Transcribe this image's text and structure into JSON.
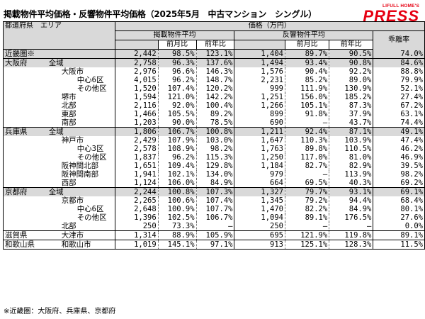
{
  "title": "掲載物件平均価格・反響物件平均価格（2025年5月　中古マンション　シングル）",
  "logo": {
    "top": "LIFULL HOME'S",
    "main": "PRESS",
    "color": "#e60012"
  },
  "header": {
    "area_col": "都道府県　エリア",
    "price_group": "価格（万円）",
    "listed_avg": "掲載物件平均",
    "response_avg": "反響物件平均",
    "mom": "前月比",
    "yoy": "前年比",
    "divergence": "乖離率"
  },
  "rows": [
    {
      "pref": "近畿圏※",
      "area": "",
      "indent": 0,
      "lp": "2,442",
      "lm": "98.5%",
      "ly": "123.1%",
      "rp": "1,404",
      "rm": "89.7%",
      "ry": "90.5%",
      "d": "74.0%",
      "shade": true,
      "sep": true
    },
    {
      "pref": "大阪府",
      "area": "全域",
      "indent": 0,
      "lp": "2,758",
      "lm": "96.3%",
      "ly": "137.6%",
      "rp": "1,494",
      "rm": "93.4%",
      "ry": "90.8%",
      "d": "84.6%",
      "shade": true,
      "sep": false
    },
    {
      "pref": "",
      "area": "大阪市",
      "indent": 1,
      "lp": "2,976",
      "lm": "96.6%",
      "ly": "146.3%",
      "rp": "1,576",
      "rm": "90.4%",
      "ry": "92.2%",
      "d": "88.8%",
      "shade": false,
      "sep": false
    },
    {
      "pref": "",
      "area": "中心6区",
      "indent": 2,
      "lp": "4,015",
      "lm": "96.2%",
      "ly": "148.7%",
      "rp": "2,231",
      "rm": "85.2%",
      "ry": "89.0%",
      "d": "79.9%",
      "shade": false,
      "sep": false
    },
    {
      "pref": "",
      "area": "その他区",
      "indent": 2,
      "lp": "1,520",
      "lm": "107.4%",
      "ly": "120.2%",
      "rp": "999",
      "rm": "111.9%",
      "ry": "130.9%",
      "d": "52.1%",
      "shade": false,
      "sep": false
    },
    {
      "pref": "",
      "area": "堺市",
      "indent": 1,
      "lp": "1,594",
      "lm": "121.0%",
      "ly": "142.2%",
      "rp": "1,251",
      "rm": "156.0%",
      "ry": "185.2%",
      "d": "27.4%",
      "shade": false,
      "sep": false
    },
    {
      "pref": "",
      "area": "北部",
      "indent": 1,
      "lp": "2,116",
      "lm": "92.0%",
      "ly": "100.4%",
      "rp": "1,266",
      "rm": "105.1%",
      "ry": "87.3%",
      "d": "67.2%",
      "shade": false,
      "sep": false
    },
    {
      "pref": "",
      "area": "東部",
      "indent": 1,
      "lp": "1,466",
      "lm": "105.5%",
      "ly": "89.2%",
      "rp": "899",
      "rm": "91.8%",
      "ry": "37.9%",
      "d": "63.1%",
      "shade": false,
      "sep": false
    },
    {
      "pref": "",
      "area": "南部",
      "indent": 1,
      "lp": "1,203",
      "lm": "90.0%",
      "ly": "78.5%",
      "rp": "690",
      "rm": "–",
      "ry": "43.7%",
      "d": "74.4%",
      "shade": false,
      "sep": true
    },
    {
      "pref": "兵庫県",
      "area": "全域",
      "indent": 0,
      "lp": "1,806",
      "lm": "106.7%",
      "ly": "100.8%",
      "rp": "1,211",
      "rm": "92.4%",
      "ry": "87.1%",
      "d": "49.1%",
      "shade": true,
      "sep": false
    },
    {
      "pref": "",
      "area": "神戸市",
      "indent": 1,
      "lp": "2,429",
      "lm": "107.9%",
      "ly": "103.0%",
      "rp": "1,647",
      "rm": "110.3%",
      "ry": "103.9%",
      "d": "47.4%",
      "shade": false,
      "sep": false
    },
    {
      "pref": "",
      "area": "中心3区",
      "indent": 2,
      "lp": "2,578",
      "lm": "108.9%",
      "ly": "98.2%",
      "rp": "1,763",
      "rm": "89.8%",
      "ry": "110.5%",
      "d": "46.2%",
      "shade": false,
      "sep": false
    },
    {
      "pref": "",
      "area": "その他区",
      "indent": 2,
      "lp": "1,837",
      "lm": "96.2%",
      "ly": "115.3%",
      "rp": "1,250",
      "rm": "117.0%",
      "ry": "81.0%",
      "d": "46.9%",
      "shade": false,
      "sep": false
    },
    {
      "pref": "",
      "area": "阪神間北部",
      "indent": 1,
      "lp": "1,651",
      "lm": "109.4%",
      "ly": "129.8%",
      "rp": "1,184",
      "rm": "82.7%",
      "ry": "82.9%",
      "d": "39.5%",
      "shade": false,
      "sep": false
    },
    {
      "pref": "",
      "area": "阪神間南部",
      "indent": 1,
      "lp": "1,941",
      "lm": "102.1%",
      "ly": "134.0%",
      "rp": "979",
      "rm": "–",
      "ry": "113.9%",
      "d": "98.2%",
      "shade": false,
      "sep": false
    },
    {
      "pref": "",
      "area": "西部",
      "indent": 1,
      "lp": "1,124",
      "lm": "106.0%",
      "ly": "84.9%",
      "rp": "664",
      "rm": "69.5%",
      "ry": "40.3%",
      "d": "69.2%",
      "shade": false,
      "sep": true
    },
    {
      "pref": "京都府",
      "area": "全域",
      "indent": 0,
      "lp": "2,244",
      "lm": "100.8%",
      "ly": "107.3%",
      "rp": "1,327",
      "rm": "79.7%",
      "ry": "93.1%",
      "d": "69.1%",
      "shade": true,
      "sep": false
    },
    {
      "pref": "",
      "area": "京都市",
      "indent": 1,
      "lp": "2,265",
      "lm": "100.6%",
      "ly": "107.4%",
      "rp": "1,345",
      "rm": "79.2%",
      "ry": "94.4%",
      "d": "68.4%",
      "shade": false,
      "sep": false
    },
    {
      "pref": "",
      "area": "中心6区",
      "indent": 2,
      "lp": "2,648",
      "lm": "100.9%",
      "ly": "107.7%",
      "rp": "1,470",
      "rm": "82.2%",
      "ry": "84.9%",
      "d": "80.1%",
      "shade": false,
      "sep": false
    },
    {
      "pref": "",
      "area": "その他区",
      "indent": 2,
      "lp": "1,396",
      "lm": "102.5%",
      "ly": "106.7%",
      "rp": "1,094",
      "rm": "89.1%",
      "ry": "176.5%",
      "d": "27.6%",
      "shade": false,
      "sep": false
    },
    {
      "pref": "",
      "area": "北部",
      "indent": 1,
      "lp": "250",
      "lm": "73.3%",
      "ly": "–",
      "rp": "250",
      "rm": "–",
      "ry": "–",
      "d": "0.0%",
      "shade": false,
      "sep": true
    },
    {
      "pref": "滋賀県",
      "area": "大津市",
      "indent": 1,
      "lp": "1,314",
      "lm": "88.9%",
      "ly": "105.9%",
      "rp": "695",
      "rm": "121.9%",
      "ry": "119.8%",
      "d": "89.1%",
      "shade": false,
      "sep": true
    },
    {
      "pref": "和歌山県",
      "area": "和歌山市",
      "indent": 1,
      "lp": "1,019",
      "lm": "145.1%",
      "ly": "97.1%",
      "rp": "913",
      "rm": "125.1%",
      "ry": "128.3%",
      "d": "11.5%",
      "shade": false,
      "sep": true
    }
  ],
  "colors": {
    "shade": "#d9d9d9",
    "header": "#d9d9d9"
  },
  "footnote": "※近畿圏：大阪府、兵庫県、京都府"
}
